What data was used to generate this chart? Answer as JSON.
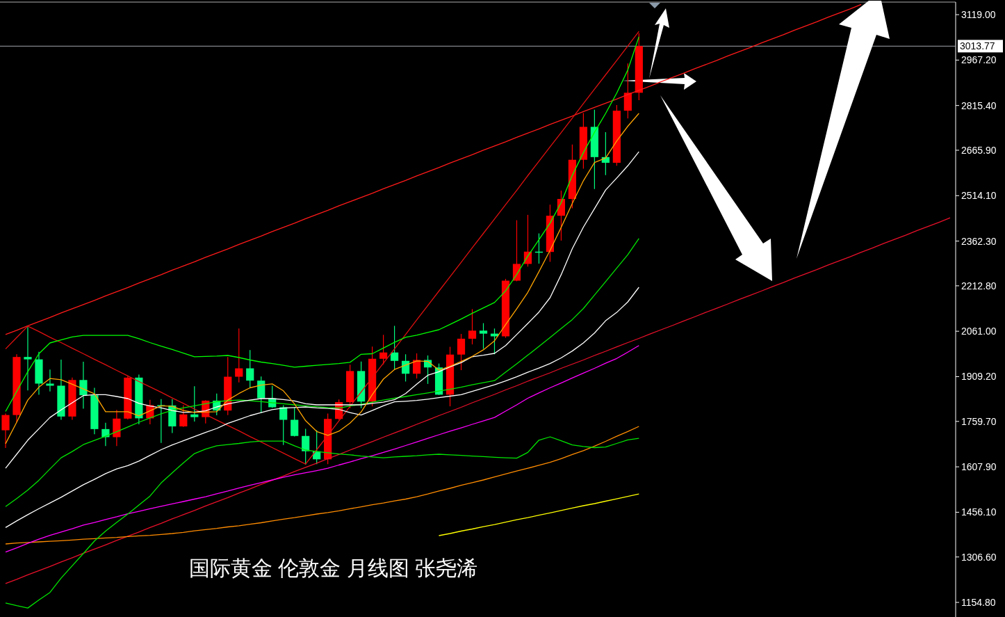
{
  "chart_data": {
    "type": "candlestick",
    "title": "国际黄金 伦敦金 月线图 张尧浠",
    "categories": [
      null,
      null,
      null,
      null,
      null,
      null,
      null,
      null,
      null,
      null,
      null,
      null,
      null,
      null,
      null,
      null,
      null,
      null,
      null,
      null,
      null,
      null,
      null,
      null,
      null,
      null,
      null,
      null,
      null,
      null,
      null,
      null,
      null,
      null,
      null,
      null,
      null,
      null,
      null,
      null,
      null,
      null,
      null,
      null,
      null,
      null,
      null,
      null,
      null,
      null,
      null,
      null,
      null,
      null,
      null,
      null,
      null,
      null,
      null,
      null,
      null,
      null,
      null,
      null,
      null,
      null,
      null,
      null,
      null,
      null,
      null,
      null,
      null,
      null,
      null,
      null,
      null,
      null,
      null,
      null,
      null,
      null,
      null,
      null,
      null,
      null
    ],
    "colors": [
      "#ff0000",
      "#ff0000",
      "#00ff7f",
      "#00ff7f",
      "#00ff7f",
      "#00ff7f",
      "#ff0000",
      "#00ff7f",
      "#00ff7f",
      "#00ff7f",
      "#ff0000",
      "#ff0000",
      "#00ff7f",
      "#ff0000",
      "#00ff7f",
      "#00ff7f",
      "#ff0000",
      "#00ff7f",
      "#ff0000",
      "#00ff7f",
      "#ff0000",
      "#ff0000",
      "#00ff7f",
      "#00ff7f",
      "#00ff7f",
      "#00ff7f",
      "#00ff7f",
      "#00ff7f",
      "#00ff7f",
      "#ff0000",
      "#ff0000",
      "#ff0000",
      "#00ff7f",
      "#ff0000",
      "#ff0000",
      "#00ff7f",
      "#00ff7f",
      "#ff0000",
      "#00ff7f",
      "#00ff7f",
      "#ff0000",
      "#ff0000",
      "#ff0000",
      "#00ff7f",
      "#00ff7f",
      "#ff0000",
      "#ff0000",
      "#ff0000",
      "#00ff7f",
      "#ff0000",
      "#ff0000",
      "#ff0000",
      "#ff0000",
      "#00ff7f",
      "#00ff7f",
      "#ff0000",
      "#ff0000",
      "#ff0000",
      null,
      null,
      null,
      null,
      null,
      null,
      null,
      null,
      null,
      null,
      null,
      null,
      null,
      null,
      null,
      null,
      null,
      null,
      null,
      null,
      null,
      null,
      null,
      null,
      null,
      null,
      null,
      null
    ],
    "ohlc": [
      [
        1730,
        1786,
        1671,
        1781
      ],
      [
        1781,
        1984,
        1757,
        1975
      ],
      [
        1975,
        2075,
        1863,
        1967
      ],
      [
        1967,
        1992,
        1849,
        1886
      ],
      [
        1886,
        1933,
        1860,
        1879
      ],
      [
        1879,
        1966,
        1765,
        1776
      ],
      [
        1776,
        1906,
        1765,
        1898
      ],
      [
        1898,
        1959,
        1802,
        1847
      ],
      [
        1847,
        1872,
        1717,
        1734
      ],
      [
        1734,
        1755,
        1677,
        1707
      ],
      [
        1707,
        1798,
        1677,
        1769
      ],
      [
        1769,
        1912,
        1766,
        1906
      ],
      [
        1906,
        1916,
        1750,
        1770
      ],
      [
        1770,
        1832,
        1750,
        1814
      ],
      [
        1814,
        1834,
        1688,
        1813
      ],
      [
        1813,
        1834,
        1721,
        1743
      ],
      [
        1743,
        1814,
        1741,
        1783
      ],
      [
        1783,
        1877,
        1759,
        1774
      ],
      [
        1774,
        1831,
        1753,
        1829
      ],
      [
        1829,
        1853,
        1780,
        1796
      ],
      [
        1796,
        1975,
        1781,
        1909
      ],
      [
        1909,
        2070,
        1890,
        1937
      ],
      [
        1937,
        1998,
        1872,
        1896
      ],
      [
        1896,
        1910,
        1787,
        1837
      ],
      [
        1837,
        1879,
        1805,
        1807
      ],
      [
        1807,
        1814,
        1681,
        1765
      ],
      [
        1765,
        1807,
        1709,
        1711
      ],
      [
        1711,
        1735,
        1615,
        1660
      ],
      [
        1660,
        1730,
        1617,
        1633
      ],
      [
        1633,
        1786,
        1617,
        1768
      ],
      [
        1768,
        1833,
        1765,
        1824
      ],
      [
        1824,
        1949,
        1804,
        1928
      ],
      [
        1928,
        1960,
        1804,
        1826
      ],
      [
        1826,
        2010,
        1810,
        1969
      ],
      [
        1969,
        2049,
        1950,
        1990
      ],
      [
        1990,
        2079,
        1932,
        1962
      ],
      [
        1962,
        1984,
        1893,
        1919
      ],
      [
        1919,
        1987,
        1903,
        1965
      ],
      [
        1965,
        1980,
        1885,
        1940
      ],
      [
        1940,
        1953,
        1848,
        1849
      ],
      [
        1849,
        2009,
        1810,
        1983
      ],
      [
        1983,
        2052,
        1931,
        2036
      ],
      [
        2036,
        2135,
        2017,
        2063
      ],
      [
        2063,
        2088,
        2002,
        2053
      ],
      [
        2053,
        2070,
        1984,
        2044
      ],
      [
        2044,
        2236,
        2039,
        2230
      ],
      [
        2230,
        2432,
        2228,
        2286
      ],
      [
        2286,
        2450,
        2277,
        2327
      ],
      [
        2327,
        2388,
        2287,
        2326
      ],
      [
        2326,
        2484,
        2293,
        2447
      ],
      [
        2447,
        2531,
        2364,
        2503
      ],
      [
        2503,
        2685,
        2472,
        2634
      ],
      [
        2634,
        2790,
        2604,
        2744
      ],
      [
        2744,
        2801,
        2536,
        2643
      ],
      [
        2643,
        2726,
        2583,
        2624
      ],
      [
        2624,
        2817,
        2614,
        2798
      ],
      [
        2798,
        2956,
        2772,
        2858
      ],
      [
        2858,
        3057,
        2833,
        3014
      ],
      null,
      null,
      null,
      null,
      null,
      null,
      null,
      null,
      null,
      null,
      null,
      null,
      null,
      null,
      null,
      null,
      null,
      null,
      null,
      null,
      null,
      null,
      null,
      null,
      null,
      null,
      null,
      null
    ],
    "series": [
      {
        "type": "line",
        "color": "#ff1a1a",
        "values": [
          2050,
          2064,
          2079,
          2093,
          2107,
          2122,
          2136,
          2150,
          2164,
          2179,
          2193,
          2207,
          2222,
          2236,
          2250,
          2265,
          2279,
          2293,
          2308,
          2322,
          2336,
          2351,
          2365,
          2379,
          2394,
          2408,
          2422,
          2437,
          2451,
          2465,
          2480,
          2494,
          2508,
          2522,
          2537,
          2551,
          2565,
          2580,
          2594,
          2608,
          2623,
          2637,
          2651,
          2666,
          2680,
          2694,
          2709,
          2723,
          2737,
          2752,
          2766,
          2780,
          2795,
          2809,
          2823,
          2837,
          2852,
          2866,
          2880,
          2895,
          2909,
          2923,
          2938,
          2952,
          2966,
          2981,
          2995,
          3009,
          3024,
          3038,
          3052,
          3067,
          3081,
          3095,
          3110,
          3124,
          3138,
          3153,
          null,
          null,
          null,
          null,
          null,
          null,
          null,
          null
        ]
      },
      {
        "type": "line",
        "color": "#e8102a",
        "values": [
          1218,
          1232,
          1247,
          1261,
          1275,
          1290,
          1304,
          1319,
          1333,
          1347,
          1362,
          1376,
          1390,
          1405,
          1419,
          1434,
          1448,
          1462,
          1477,
          1491,
          1505,
          1520,
          1534,
          1549,
          1563,
          1577,
          1592,
          1606,
          1620,
          1635,
          1649,
          1664,
          1678,
          1692,
          1707,
          1721,
          1735,
          1750,
          1764,
          1779,
          1793,
          1807,
          1822,
          1836,
          1850,
          1865,
          1879,
          1894,
          1908,
          1922,
          1937,
          1951,
          1965,
          1980,
          1994,
          2009,
          2023,
          2037,
          2052,
          2066,
          2080,
          2095,
          2109,
          2124,
          2138,
          2152,
          2167,
          2181,
          2195,
          2210,
          2224,
          2239,
          2253,
          2267,
          2282,
          2296,
          2310,
          2325,
          2339,
          2354,
          2368,
          2382,
          2397,
          2411,
          2425,
          2440
        ]
      },
      {
        "type": "line",
        "color": "#e01010",
        "values": [
          2002,
          2040,
          2078,
          2060,
          2041,
          2023,
          2004,
          1986,
          1967,
          1949,
          1930,
          1912,
          1893,
          1875,
          1857,
          1838,
          1820,
          1801,
          1783,
          1764,
          1746,
          1728,
          1709,
          1691,
          1672,
          1654,
          1635,
          1617,
          1665,
          1713,
          1761,
          1810,
          1858,
          1906,
          1954,
          2002,
          2050,
          2099,
          2147,
          2195,
          2243,
          2291,
          2340,
          2388,
          2436,
          2484,
          2532,
          2581,
          2629,
          2677,
          2725,
          2773,
          2822,
          2870,
          2918,
          2966,
          3014,
          3063,
          null,
          null,
          null,
          null,
          null,
          null,
          null,
          null,
          null,
          null,
          null,
          null,
          null,
          null,
          null,
          null,
          null,
          null,
          null,
          null,
          null,
          null,
          null,
          null,
          null,
          null,
          null,
          null
        ]
      },
      {
        "type": "line",
        "color": "#ffff00",
        "values": [
          null,
          null,
          null,
          null,
          null,
          null,
          null,
          null,
          null,
          null,
          null,
          null,
          null,
          null,
          null,
          null,
          null,
          null,
          null,
          null,
          null,
          null,
          null,
          null,
          null,
          null,
          null,
          null,
          null,
          null,
          null,
          null,
          null,
          null,
          null,
          null,
          null,
          null,
          null,
          1378,
          1385,
          1393,
          1400,
          1408,
          1415,
          1423,
          1431,
          1438,
          1446,
          1454,
          1462,
          1470,
          1478,
          1485,
          1493,
          1501,
          1509,
          1517,
          null,
          null,
          null,
          null,
          null,
          null,
          null,
          null,
          null,
          null,
          null,
          null,
          null,
          null,
          null,
          null,
          null,
          null,
          null,
          null,
          null,
          null,
          null,
          null,
          null,
          null,
          null,
          null
        ]
      },
      {
        "type": "line",
        "color": "#ff8c00",
        "values": [
          1350,
          1353,
          1355,
          1357,
          1359,
          1361,
          1363,
          1366,
          1368,
          1370,
          1372,
          1375,
          1377,
          1379,
          1382,
          1385,
          1389,
          1394,
          1398,
          1402,
          1407,
          1411,
          1416,
          1421,
          1427,
          1433,
          1438,
          1444,
          1450,
          1455,
          1461,
          1468,
          1474,
          1481,
          1487,
          1494,
          1500,
          1508,
          1517,
          1527,
          1536,
          1546,
          1555,
          1564,
          1574,
          1584,
          1594,
          1603,
          1613,
          1623,
          1635,
          1649,
          1662,
          1677,
          1693,
          1710,
          1726,
          1743,
          null,
          null,
          null,
          null,
          null,
          null,
          null,
          null,
          null,
          null,
          null,
          null,
          null,
          null,
          null,
          null,
          null,
          null,
          null,
          null,
          null,
          null,
          null,
          null,
          null,
          null,
          null,
          null
        ]
      },
      {
        "type": "line",
        "color": "#ff00ff",
        "values": [
          1323,
          1337,
          1352,
          1366,
          1379,
          1390,
          1401,
          1413,
          1422,
          1432,
          1441,
          1451,
          1459,
          1468,
          1476,
          1484,
          1492,
          1500,
          1508,
          1518,
          1527,
          1537,
          1546,
          1555,
          1564,
          1573,
          1581,
          1588,
          1595,
          1603,
          1614,
          1624,
          1635,
          1645,
          1656,
          1667,
          1679,
          1691,
          1703,
          1715,
          1727,
          1738,
          1750,
          1761,
          1773,
          1794,
          1815,
          1837,
          1855,
          1872,
          1888,
          1905,
          1921,
          1937,
          1954,
          1970,
          1991,
          2013,
          null,
          null,
          null,
          null,
          null,
          null,
          null,
          null,
          null,
          null,
          null,
          null,
          null,
          null,
          null,
          null,
          null,
          null,
          null,
          null,
          null,
          null,
          null,
          null,
          null,
          null,
          null,
          null
        ]
      },
      {
        "type": "line",
        "color": "#00e600",
        "values": [
          1153,
          1144,
          1136,
          1163,
          1188,
          1236,
          1277,
          1318,
          1360,
          1393,
          1422,
          1450,
          1480,
          1510,
          1554,
          1588,
          1621,
          1652,
          1667,
          1678,
          1682,
          1686,
          1691,
          1694,
          1694,
          1694,
          1678,
          1664,
          1659,
          1655,
          1651,
          1648,
          1644,
          1641,
          1638,
          1641,
          1643,
          1645,
          1648,
          1650,
          1648,
          1646,
          1644,
          1642,
          1640,
          1638,
          1637,
          1656,
          1697,
          1708,
          1695,
          1681,
          1676,
          1672,
          1674,
          1686,
          1698,
          1703,
          null,
          null,
          null,
          null,
          null,
          null,
          null,
          null,
          null,
          null,
          null,
          null,
          null,
          null,
          null,
          null,
          null,
          null,
          null,
          null,
          null,
          null,
          null,
          null,
          null,
          null,
          null,
          null
        ]
      },
      {
        "type": "line",
        "color": "#ffffff",
        "values": [
          1405,
          1427,
          1448,
          1468,
          1487,
          1506,
          1527,
          1548,
          1566,
          1585,
          1601,
          1612,
          1627,
          1646,
          1665,
          1681,
          1695,
          1709,
          1723,
          1736,
          1753,
          1766,
          1779,
          1789,
          1799,
          1804,
          1806,
          1808,
          1805,
          1803,
          1800,
          1789,
          1781,
          1796,
          1812,
          1825,
          1827,
          1830,
          1834,
          1839,
          1844,
          1849,
          1860,
          1871,
          1882,
          1895,
          1909,
          1924,
          1938,
          1953,
          1972,
          1995,
          2022,
          2055,
          2096,
          2124,
          2159,
          2208,
          null,
          null,
          null,
          null,
          null,
          null,
          null,
          null,
          null,
          null,
          null,
          null,
          null,
          null,
          null,
          null,
          null,
          null,
          null,
          null,
          null,
          null,
          null,
          null,
          null,
          null,
          null,
          null
        ]
      },
      {
        "type": "line",
        "color": "#00e600",
        "values": [
          1475,
          1502,
          1530,
          1563,
          1601,
          1638,
          1659,
          1682,
          1696,
          1710,
          1725,
          1741,
          1757,
          1771,
          1785,
          1797,
          1805,
          1812,
          1819,
          1826,
          1829,
          1831,
          1829,
          1826,
          1822,
          1819,
          1815,
          1812,
          1809,
          1806,
          1804,
          1811,
          1817,
          1824,
          1831,
          1837,
          1843,
          1849,
          1855,
          1861,
          1867,
          1874,
          1882,
          1889,
          1896,
          1924,
          1952,
          1981,
          2010,
          2040,
          2070,
          2100,
          2137,
          2182,
          2227,
          2272,
          2317,
          2371,
          null,
          null,
          null,
          null,
          null,
          null,
          null,
          null,
          null,
          null,
          null,
          null,
          null,
          null,
          null,
          null,
          null,
          null,
          null,
          null,
          null,
          null,
          null,
          null,
          null,
          null,
          null,
          null
        ]
      },
      {
        "type": "line",
        "color": "#ffffff",
        "values": [
          1603,
          1650,
          1697,
          1735,
          1773,
          1798,
          1822,
          1846,
          1849,
          1849,
          1843,
          1836,
          1820,
          1811,
          1805,
          1796,
          1790,
          1791,
          1795,
          1808,
          1818,
          1825,
          1831,
          1836,
          1836,
          1833,
          1828,
          1819,
          1815,
          1815,
          1815,
          1815,
          1815,
          1820,
          1824,
          1832,
          1853,
          1884,
          1914,
          1926,
          1942,
          1956,
          1976,
          1981,
          1987,
          2013,
          2050,
          2087,
          2125,
          2173,
          2250,
          2337,
          2409,
          2471,
          2533,
          2573,
          2614,
          2661,
          null,
          null,
          null,
          null,
          null,
          null,
          null,
          null,
          null,
          null,
          null,
          null,
          null,
          null,
          null,
          null,
          null,
          null,
          null,
          null,
          null,
          null,
          null,
          null,
          null,
          null,
          null,
          null
        ]
      },
      {
        "type": "line",
        "color": "#ffa500",
        "values": [
          1685,
          1757,
          1831,
          1874,
          1903,
          1899,
          1884,
          1868,
          1852,
          1792,
          1792,
          1792,
          1778,
          1795,
          1812,
          1810,
          1796,
          1790,
          1791,
          1792,
          1831,
          1853,
          1872,
          1881,
          1885,
          1862,
          1818,
          1762,
          1726,
          1713,
          1727,
          1754,
          1791,
          1849,
          1901,
          1933,
          1948,
          1962,
          1960,
          1931,
          1944,
          1960,
          1977,
          1999,
          2029,
          2083,
          2136,
          2191,
          2260,
          2331,
          2408,
          2488,
          2564,
          2625,
          2640,
          2697,
          2746,
          2789,
          null,
          null,
          null,
          null,
          null,
          null,
          null,
          null,
          null,
          null,
          null,
          null,
          null,
          null,
          null,
          null,
          null,
          null,
          null,
          null,
          null,
          null,
          null,
          null,
          null,
          null,
          null,
          null
        ]
      },
      {
        "type": "line",
        "color": "#00ff00",
        "values": [
          1793,
          1860,
          1926,
          1986,
          2022,
          2032,
          2042,
          2047,
          2047,
          2047,
          2047,
          2047,
          2036,
          2023,
          2011,
          2000,
          1988,
          1976,
          1977,
          1978,
          1980,
          1973,
          1965,
          1958,
          1953,
          1947,
          1941,
          1944,
          1947,
          1950,
          1953,
          1957,
          1984,
          1986,
          2005,
          2024,
          2041,
          2048,
          2057,
          2066,
          2084,
          2102,
          2121,
          2139,
          2157,
          2196,
          2251,
          2312,
          2367,
          2422,
          2491,
          2582,
          2658,
          2726,
          2789,
          2857,
          2934,
          3045,
          null,
          null,
          null,
          null,
          null,
          null,
          null,
          null,
          null,
          null,
          null,
          null,
          null,
          null,
          null,
          null,
          null,
          null,
          null,
          null,
          null,
          null,
          null,
          null,
          null,
          null,
          null,
          null
        ]
      }
    ],
    "ylim": [
      1106,
      3161
    ],
    "yticks": [
      {
        "value": 3119,
        "label": "3119.00"
      },
      {
        "value": 2967.2,
        "label": "2967.20"
      },
      {
        "value": 2815.4,
        "label": "2815.40"
      },
      {
        "value": 2665.9,
        "label": "2665.90"
      },
      {
        "value": 2514.1,
        "label": "2514.10"
      },
      {
        "value": 2362.3,
        "label": "2362.30"
      },
      {
        "value": 2212.8,
        "label": "2212.80"
      },
      {
        "value": 2061,
        "label": "2061.00"
      },
      {
        "value": 1909.2,
        "label": "1909.20"
      },
      {
        "value": 1759.7,
        "label": "1759.70"
      },
      {
        "value": 1607.9,
        "label": "1607.90"
      },
      {
        "value": 1456.1,
        "label": "1456.10"
      },
      {
        "value": 1306.6,
        "label": "1306.60"
      },
      {
        "value": 1154.8,
        "label": "1154.80"
      }
    ],
    "ref_lines": [
      {
        "axis": "y",
        "value": 3013.77,
        "label": "3013.77",
        "color": "#a0a4ac"
      }
    ]
  }
}
